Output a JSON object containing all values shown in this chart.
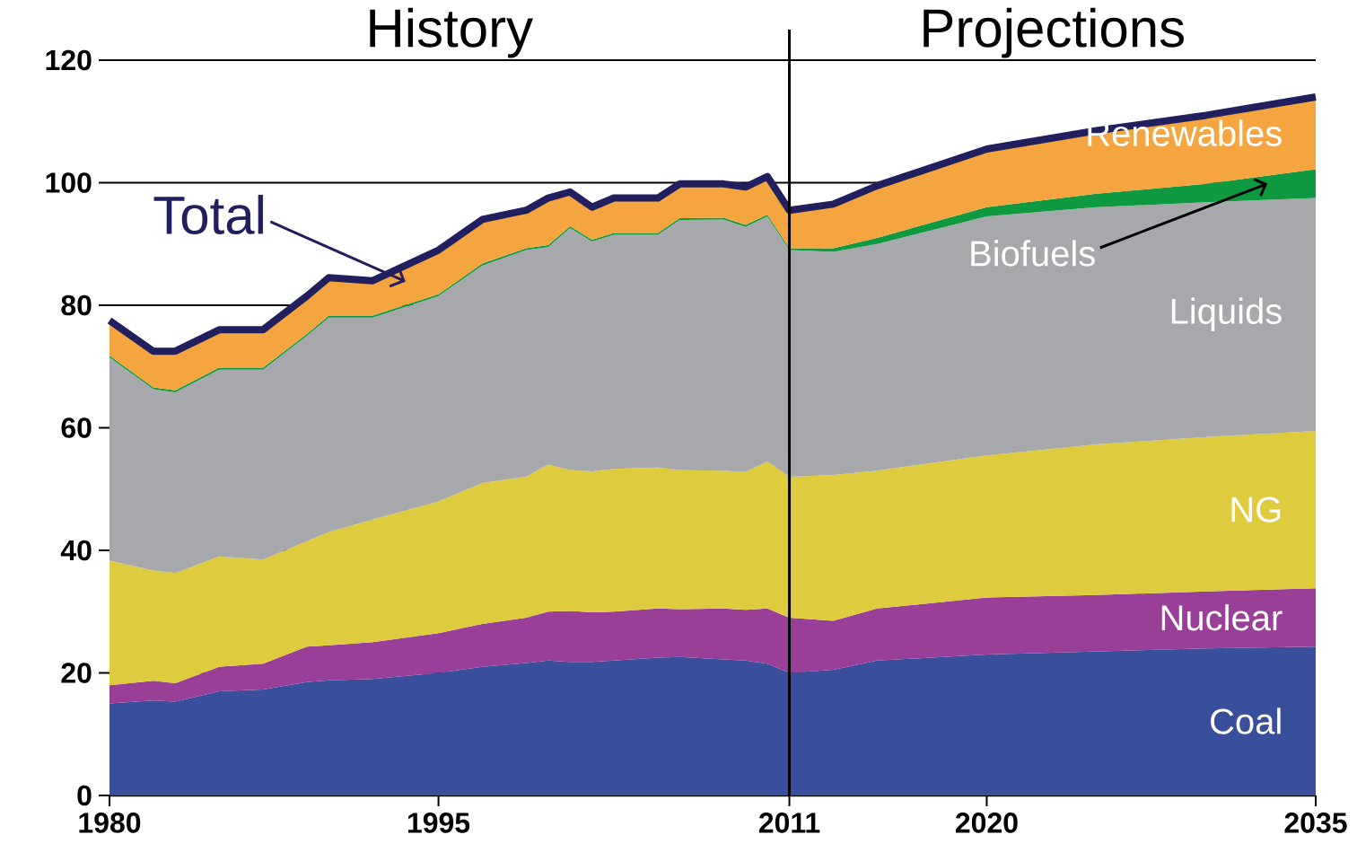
{
  "chart_data": {
    "type": "area",
    "stacked": true,
    "x": [
      1980,
      1982,
      1983,
      1985,
      1987,
      1989,
      1990,
      1992,
      1995,
      1997,
      1999,
      2000,
      2001,
      2002,
      2003,
      2005,
      2006,
      2008,
      2009,
      2010,
      2011,
      2013,
      2015,
      2020,
      2025,
      2030,
      2035
    ],
    "series": [
      {
        "name": "Coal",
        "color": "#3a4f9c",
        "values": [
          15,
          15.5,
          15.3,
          17,
          17.3,
          18.5,
          18.8,
          19,
          20,
          21,
          21.6,
          22,
          21.8,
          21.8,
          22,
          22.5,
          22.6,
          22.2,
          22,
          21.5,
          20,
          20.5,
          22,
          23,
          23.5,
          24,
          24.3
        ]
      },
      {
        "name": "Nuclear",
        "color": "#9a3f97",
        "values": [
          3,
          3.2,
          3,
          4,
          4.2,
          5.8,
          5.7,
          6,
          6.5,
          7,
          7.4,
          8,
          8.3,
          8.1,
          8,
          8,
          7.8,
          8.3,
          8.3,
          9,
          9,
          8,
          8.5,
          9.3,
          9.2,
          9.3,
          9.5
        ]
      },
      {
        "name": "NG",
        "color": "#dfcb3e",
        "values": [
          20.3,
          18,
          18,
          18,
          17,
          17.2,
          18.5,
          20,
          21.5,
          23,
          23,
          24,
          23,
          23,
          23.3,
          23,
          22.7,
          22.5,
          22.5,
          24,
          23,
          23.8,
          22.5,
          23.2,
          24.6,
          25.2,
          25.7
        ]
      },
      {
        "name": "Liquids",
        "color": "#a7a8ac",
        "values": [
          33.2,
          29.6,
          29.5,
          30.5,
          31,
          33.5,
          35,
          33,
          33.5,
          35.5,
          37,
          35.5,
          39.5,
          37.5,
          38.2,
          38,
          40.8,
          41,
          40,
          40,
          37,
          36.4,
          37,
          39,
          38.7,
          38.3,
          38
        ]
      },
      {
        "name": "Biofuels",
        "color": "#0f9940",
        "values": [
          0.3,
          0.3,
          0.3,
          0.3,
          0.3,
          0.3,
          0.3,
          0.3,
          0.3,
          0.3,
          0.3,
          0.3,
          0.3,
          0.3,
          0.3,
          0.3,
          0.3,
          0.3,
          0.3,
          0.3,
          0.3,
          0.6,
          1,
          1.5,
          2.2,
          3,
          4.7
        ]
      },
      {
        "name": "Renewables",
        "color": "#f5a540",
        "values": [
          5.7,
          5.9,
          6.4,
          6.2,
          6.2,
          6.2,
          6.2,
          5.7,
          7.2,
          7.2,
          6.2,
          7.7,
          5.7,
          5.2,
          5.7,
          5.7,
          5.5,
          5.5,
          6.2,
          6.2,
          6.2,
          7.2,
          8.5,
          9.5,
          10.3,
          11.2,
          11.8
        ]
      },
      {
        "name": "Total",
        "type": "line",
        "color": "#221f5e",
        "marker": "none",
        "line_style": "solid",
        "values": [
          77.5,
          72.5,
          72.5,
          76,
          76,
          81.5,
          84.5,
          84,
          89,
          94,
          95.5,
          97.5,
          98.5,
          96,
          97.5,
          97.5,
          99.8,
          99.8,
          99.3,
          101,
          95.5,
          96.5,
          99.5,
          105.5,
          108.5,
          111,
          114
        ]
      }
    ],
    "xlim": [
      1980,
      2035
    ],
    "xticks": [
      1980,
      1995,
      2011,
      2020,
      2035
    ],
    "ylim": [
      0,
      120
    ],
    "yticks": [
      0,
      20,
      40,
      60,
      80,
      100,
      120
    ],
    "grid": "y",
    "ref_lines": [
      {
        "axis": "x",
        "value": 2011,
        "color": "#000000"
      }
    ],
    "annotations": [
      "History",
      "Projections"
    ]
  }
}
